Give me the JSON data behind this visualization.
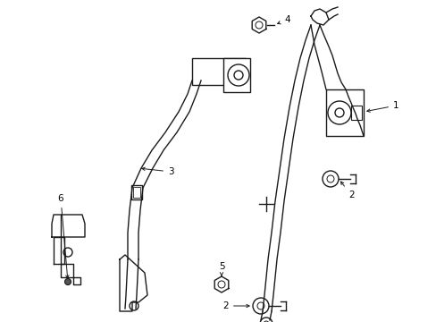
{
  "bg_color": "#ffffff",
  "line_color": "#1a1a1a",
  "figsize": [
    4.89,
    3.6
  ],
  "dpi": 100,
  "lw": 1.0,
  "font_size": 7.5
}
